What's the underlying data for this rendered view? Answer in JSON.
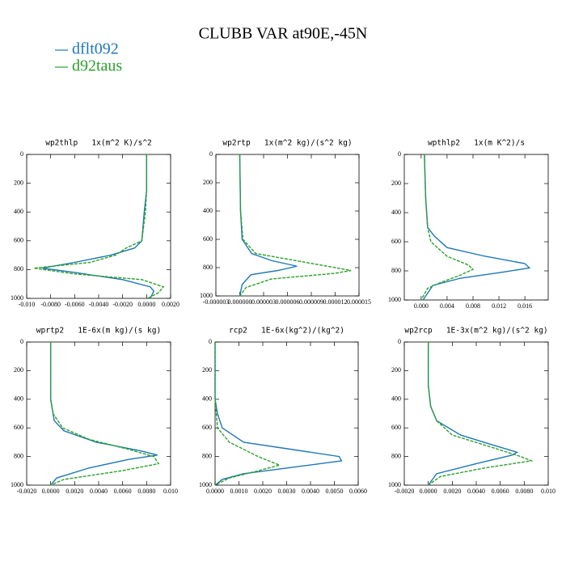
{
  "title": "CLUBB VAR at90E,-45N",
  "chart_data": [
    {
      "type": "line",
      "title": "wp2thlp   1x(m^2 K)/s^2",
      "xlim": [
        -0.01,
        0.002
      ],
      "xticks": [
        {
          "value": -0.01,
          "label": "-0.010"
        },
        {
          "value": -0.008,
          "label": "-0.0080"
        },
        {
          "value": -0.006,
          "label": "-0.0060"
        },
        {
          "value": -0.004,
          "label": "-0.0040"
        },
        {
          "value": -0.002,
          "label": "-0.0020"
        },
        {
          "value": 0,
          "label": "0.0000"
        },
        {
          "value": 0.002,
          "label": "0.0020"
        }
      ],
      "ylim": [
        0,
        1000
      ],
      "yticks": [
        0,
        200,
        400,
        600,
        800,
        1000
      ],
      "yinvert": true,
      "series": [
        {
          "name": "dflt092",
          "color": "#1f77b4",
          "linestyle": "solid",
          "y": [
            0,
            250,
            400,
            600,
            650,
            700,
            750,
            790,
            820,
            870,
            920,
            950,
            1000
          ],
          "values": [
            0,
            0,
            -0.0002,
            -0.0004,
            -0.001,
            -0.003,
            -0.006,
            -0.0087,
            -0.006,
            -0.002,
            0.0003,
            0.0006,
            0.0003
          ]
        },
        {
          "name": "d92taus",
          "color": "#2ca02c",
          "linestyle": "dashed",
          "y": [
            0,
            250,
            400,
            600,
            650,
            700,
            750,
            790,
            830,
            870,
            920,
            960,
            1000
          ],
          "values": [
            0,
            0,
            -0.0001,
            -0.0004,
            -0.0017,
            -0.0026,
            -0.0047,
            -0.0094,
            -0.006,
            -0.0004,
            0.0014,
            0.001,
            0.0001
          ]
        }
      ]
    },
    {
      "type": "line",
      "title": "wp2rtp   1x(m^2 kg)/(s^2 kg)",
      "xlim": [
        -3e-06,
        1.5e-05
      ],
      "xticks": [
        {
          "value": -3e-06,
          "label": "-0.000003"
        },
        {
          "value": 0,
          "label": "0.000000"
        },
        {
          "value": 3e-06,
          "label": "0.000003"
        },
        {
          "value": 6e-06,
          "label": "0.000006"
        },
        {
          "value": 9e-06,
          "label": "0.000009"
        },
        {
          "value": 1.2e-05,
          "label": "0.000012"
        },
        {
          "value": 1.5e-05,
          "label": "0.000015"
        }
      ],
      "ylim": [
        0,
        1000
      ],
      "yticks": [
        0,
        200,
        400,
        600,
        800,
        1000
      ],
      "yinvert": true,
      "series": [
        {
          "name": "dflt092",
          "color": "#1f77b4",
          "linestyle": "solid",
          "y": [
            0,
            400,
            600,
            700,
            750,
            790,
            820,
            850,
            920,
            1000
          ],
          "values": [
            0,
            1e-07,
            3e-07,
            1.5e-06,
            4e-06,
            7.2e-06,
            4.8e-06,
            1.4e-06,
            3e-07,
            0
          ]
        },
        {
          "name": "d92taus",
          "color": "#2ca02c",
          "linestyle": "dashed",
          "y": [
            0,
            400,
            600,
            700,
            750,
            790,
            820,
            840,
            880,
            940,
            1000
          ],
          "values": [
            0,
            1e-07,
            4e-07,
            2e-06,
            7e-06,
            1.1e-05,
            1.4e-05,
            1.2e-05,
            4e-06,
            8e-07,
            0
          ]
        }
      ]
    },
    {
      "type": "line",
      "title": "wpthlp2   1x(m K^2)/s",
      "xlim": [
        -0.0026,
        0.0196
      ],
      "xticks": [
        {
          "value": 0,
          "label": "0.000"
        },
        {
          "value": 0.004,
          "label": "0.004"
        },
        {
          "value": 0.008,
          "label": "0.008"
        },
        {
          "value": 0.012,
          "label": "0.012"
        },
        {
          "value": 0.016,
          "label": "0.016"
        }
      ],
      "ylim": [
        0,
        1000
      ],
      "yticks": [
        0,
        200,
        400,
        600,
        800,
        1000
      ],
      "yinvert": true,
      "series": [
        {
          "name": "dflt092",
          "color": "#1f77b4",
          "linestyle": "solid",
          "y": [
            0,
            300,
            500,
            560,
            640,
            700,
            750,
            780,
            810,
            850,
            900,
            1000
          ],
          "values": [
            0.0005,
            0.0007,
            0.001,
            0.002,
            0.004,
            0.0099,
            0.016,
            0.0167,
            0.0124,
            0.0061,
            0.0018,
            0.0003
          ]
        },
        {
          "name": "d92taus",
          "color": "#2ca02c",
          "linestyle": "dashed",
          "y": [
            0,
            300,
            500,
            600,
            700,
            760,
            790,
            830,
            880,
            920,
            1000
          ],
          "values": [
            0.0005,
            0.0007,
            0.001,
            0.0015,
            0.004,
            0.0073,
            0.008,
            0.006,
            0.003,
            0.001,
            0
          ]
        }
      ]
    },
    {
      "type": "line",
      "title": "wprtp2   1E-6x(m kg)/(s kg)",
      "xlim": [
        -0.002,
        0.01
      ],
      "xticks": [
        {
          "value": -0.002,
          "label": "-0.0020"
        },
        {
          "value": 0,
          "label": "0.0000"
        },
        {
          "value": 0.002,
          "label": "0.0020"
        },
        {
          "value": 0.004,
          "label": "0.0040"
        },
        {
          "value": 0.006,
          "label": "0.0060"
        },
        {
          "value": 0.008,
          "label": "0.0080"
        },
        {
          "value": 0.01,
          "label": "0.010"
        }
      ],
      "ylim": [
        0,
        1000
      ],
      "yticks": [
        0,
        200,
        400,
        600,
        800,
        1000
      ],
      "yinvert": true,
      "series": [
        {
          "name": "dflt092",
          "color": "#1f77b4",
          "linestyle": "solid",
          "y": [
            0,
            400,
            550,
            620,
            700,
            760,
            790,
            820,
            880,
            950,
            1000
          ],
          "values": [
            0,
            0,
            0.0003,
            0.0011,
            0.0038,
            0.0075,
            0.0089,
            0.0065,
            0.0032,
            0.0005,
            0
          ]
        },
        {
          "name": "d92taus",
          "color": "#2ca02c",
          "linestyle": "dashed",
          "y": [
            0,
            400,
            500,
            600,
            680,
            750,
            800,
            850,
            900,
            960,
            1000
          ],
          "values": [
            0,
            0,
            0.0002,
            0.001,
            0.0032,
            0.0065,
            0.0086,
            0.009,
            0.0059,
            0.0011,
            0
          ]
        }
      ]
    },
    {
      "type": "line",
      "title": "rcp2   1E-6x(kg^2)/(kg^2)",
      "xlim": [
        0,
        0.006
      ],
      "xticks": [
        {
          "value": 0,
          "label": "0.0000"
        },
        {
          "value": 0.001,
          "label": "0.0010"
        },
        {
          "value": 0.002,
          "label": "0.0020"
        },
        {
          "value": 0.003,
          "label": "0.0030"
        },
        {
          "value": 0.004,
          "label": "0.0040"
        },
        {
          "value": 0.005,
          "label": "0.0050"
        },
        {
          "value": 0.006,
          "label": "0.0060"
        }
      ],
      "ylim": [
        0,
        1000
      ],
      "yticks": [
        0,
        200,
        400,
        600,
        800,
        1000
      ],
      "yinvert": true,
      "series": [
        {
          "name": "dflt092",
          "color": "#1f77b4",
          "linestyle": "solid",
          "y": [
            0,
            400,
            500,
            600,
            700,
            750,
            800,
            830,
            870,
            920,
            960,
            1000
          ],
          "values": [
            0,
            0,
            0.0001,
            0.0003,
            0.0012,
            0.0032,
            0.0052,
            0.0053,
            0.0035,
            0.0012,
            0.0003,
            0
          ]
        },
        {
          "name": "d92taus",
          "color": "#2ca02c",
          "linestyle": "dashed",
          "y": [
            0,
            400,
            600,
            700,
            800,
            860,
            900,
            950,
            1000
          ],
          "values": [
            0,
            0,
            0.0001,
            0.0006,
            0.0018,
            0.0027,
            0.0018,
            0.0006,
            0
          ]
        }
      ]
    },
    {
      "type": "line",
      "title": "wp2rcp   1E-3x(m^2 kg)/(s^2 kg)",
      "xlim": [
        -0.002,
        0.01
      ],
      "xticks": [
        {
          "value": -0.002,
          "label": "-0.0020"
        },
        {
          "value": 0,
          "label": "0.0000"
        },
        {
          "value": 0.002,
          "label": "0.0020"
        },
        {
          "value": 0.004,
          "label": "0.0040"
        },
        {
          "value": 0.006,
          "label": "0.0060"
        },
        {
          "value": 0.008,
          "label": "0.0080"
        },
        {
          "value": 0.01,
          "label": "0.010"
        }
      ],
      "ylim": [
        0,
        1000
      ],
      "yticks": [
        0,
        200,
        400,
        600,
        800,
        1000
      ],
      "yinvert": true,
      "series": [
        {
          "name": "dflt092",
          "color": "#1f77b4",
          "linestyle": "solid",
          "y": [
            0,
            300,
            450,
            550,
            650,
            720,
            770,
            790,
            850,
            920,
            1000
          ],
          "values": [
            0,
            0,
            0.0002,
            0.0007,
            0.0027,
            0.0054,
            0.0074,
            0.007,
            0.004,
            0.0007,
            0
          ]
        },
        {
          "name": "d92taus",
          "color": "#2ca02c",
          "linestyle": "dashed",
          "y": [
            0,
            300,
            450,
            550,
            650,
            720,
            800,
            830,
            880,
            940,
            1000
          ],
          "values": [
            0,
            0,
            0.0002,
            0.0007,
            0.002,
            0.0047,
            0.0077,
            0.0086,
            0.0047,
            0.001,
            0
          ]
        }
      ]
    }
  ]
}
